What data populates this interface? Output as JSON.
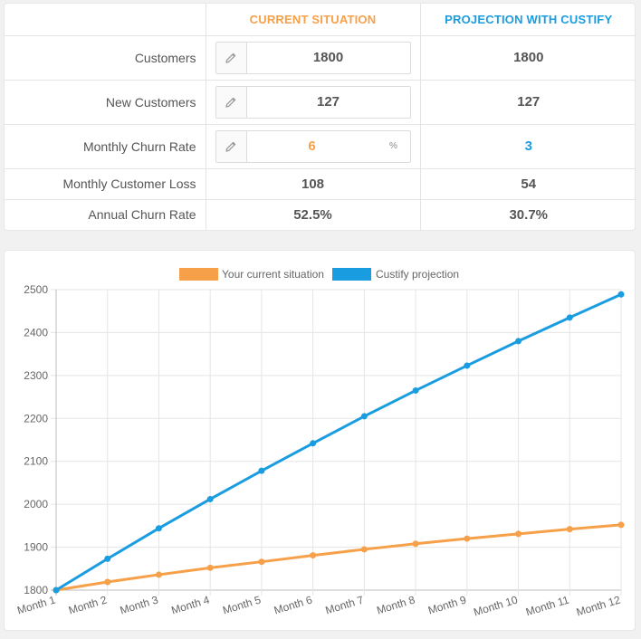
{
  "table": {
    "headers": {
      "blank": "",
      "current": "CURRENT SITUATION",
      "projection": "PROJECTION WITH CUSTIFY"
    },
    "rows": [
      {
        "label": "Customers",
        "current": "1800",
        "projection": "1800"
      },
      {
        "label": "New Customers",
        "current": "127",
        "projection": "127"
      },
      {
        "label": "Monthly Churn Rate",
        "current": "6",
        "current_suffix": "%",
        "projection": "3"
      },
      {
        "label": "Monthly Customer Loss",
        "current": "108",
        "projection": "54"
      },
      {
        "label": "Annual Churn Rate",
        "current": "52.5%",
        "projection": "30.7%"
      }
    ]
  },
  "colors": {
    "current": "#f7a04a",
    "projection": "#1a9de0",
    "edit_icon": "#9a9a9a"
  },
  "icons": {
    "edit": "pencil-icon"
  },
  "chart_data": {
    "type": "line",
    "title": "",
    "xlabel": "",
    "ylabel": "",
    "categories": [
      "Month 1",
      "Month 2",
      "Month 3",
      "Month 4",
      "Month 5",
      "Month 6",
      "Month 7",
      "Month 8",
      "Month 9",
      "Month 10",
      "Month 11",
      "Month 12"
    ],
    "ylim": [
      1800,
      2500
    ],
    "yticks": [
      "1800",
      "1900",
      "2000",
      "2100",
      "2200",
      "2300",
      "2400",
      "2500"
    ],
    "grid": true,
    "legend_position": "top",
    "series": [
      {
        "name": "Your current situation",
        "color": "#f7a04a",
        "values": [
          1800,
          1819,
          1836,
          1852,
          1866,
          1881,
          1895,
          1908,
          1920,
          1931,
          1942,
          1952
        ]
      },
      {
        "name": "Custify projection",
        "color": "#1a9de0",
        "values": [
          1800,
          1873,
          1944,
          2012,
          2078,
          2142,
          2205,
          2265,
          2323,
          2380,
          2435,
          2489
        ]
      }
    ]
  }
}
